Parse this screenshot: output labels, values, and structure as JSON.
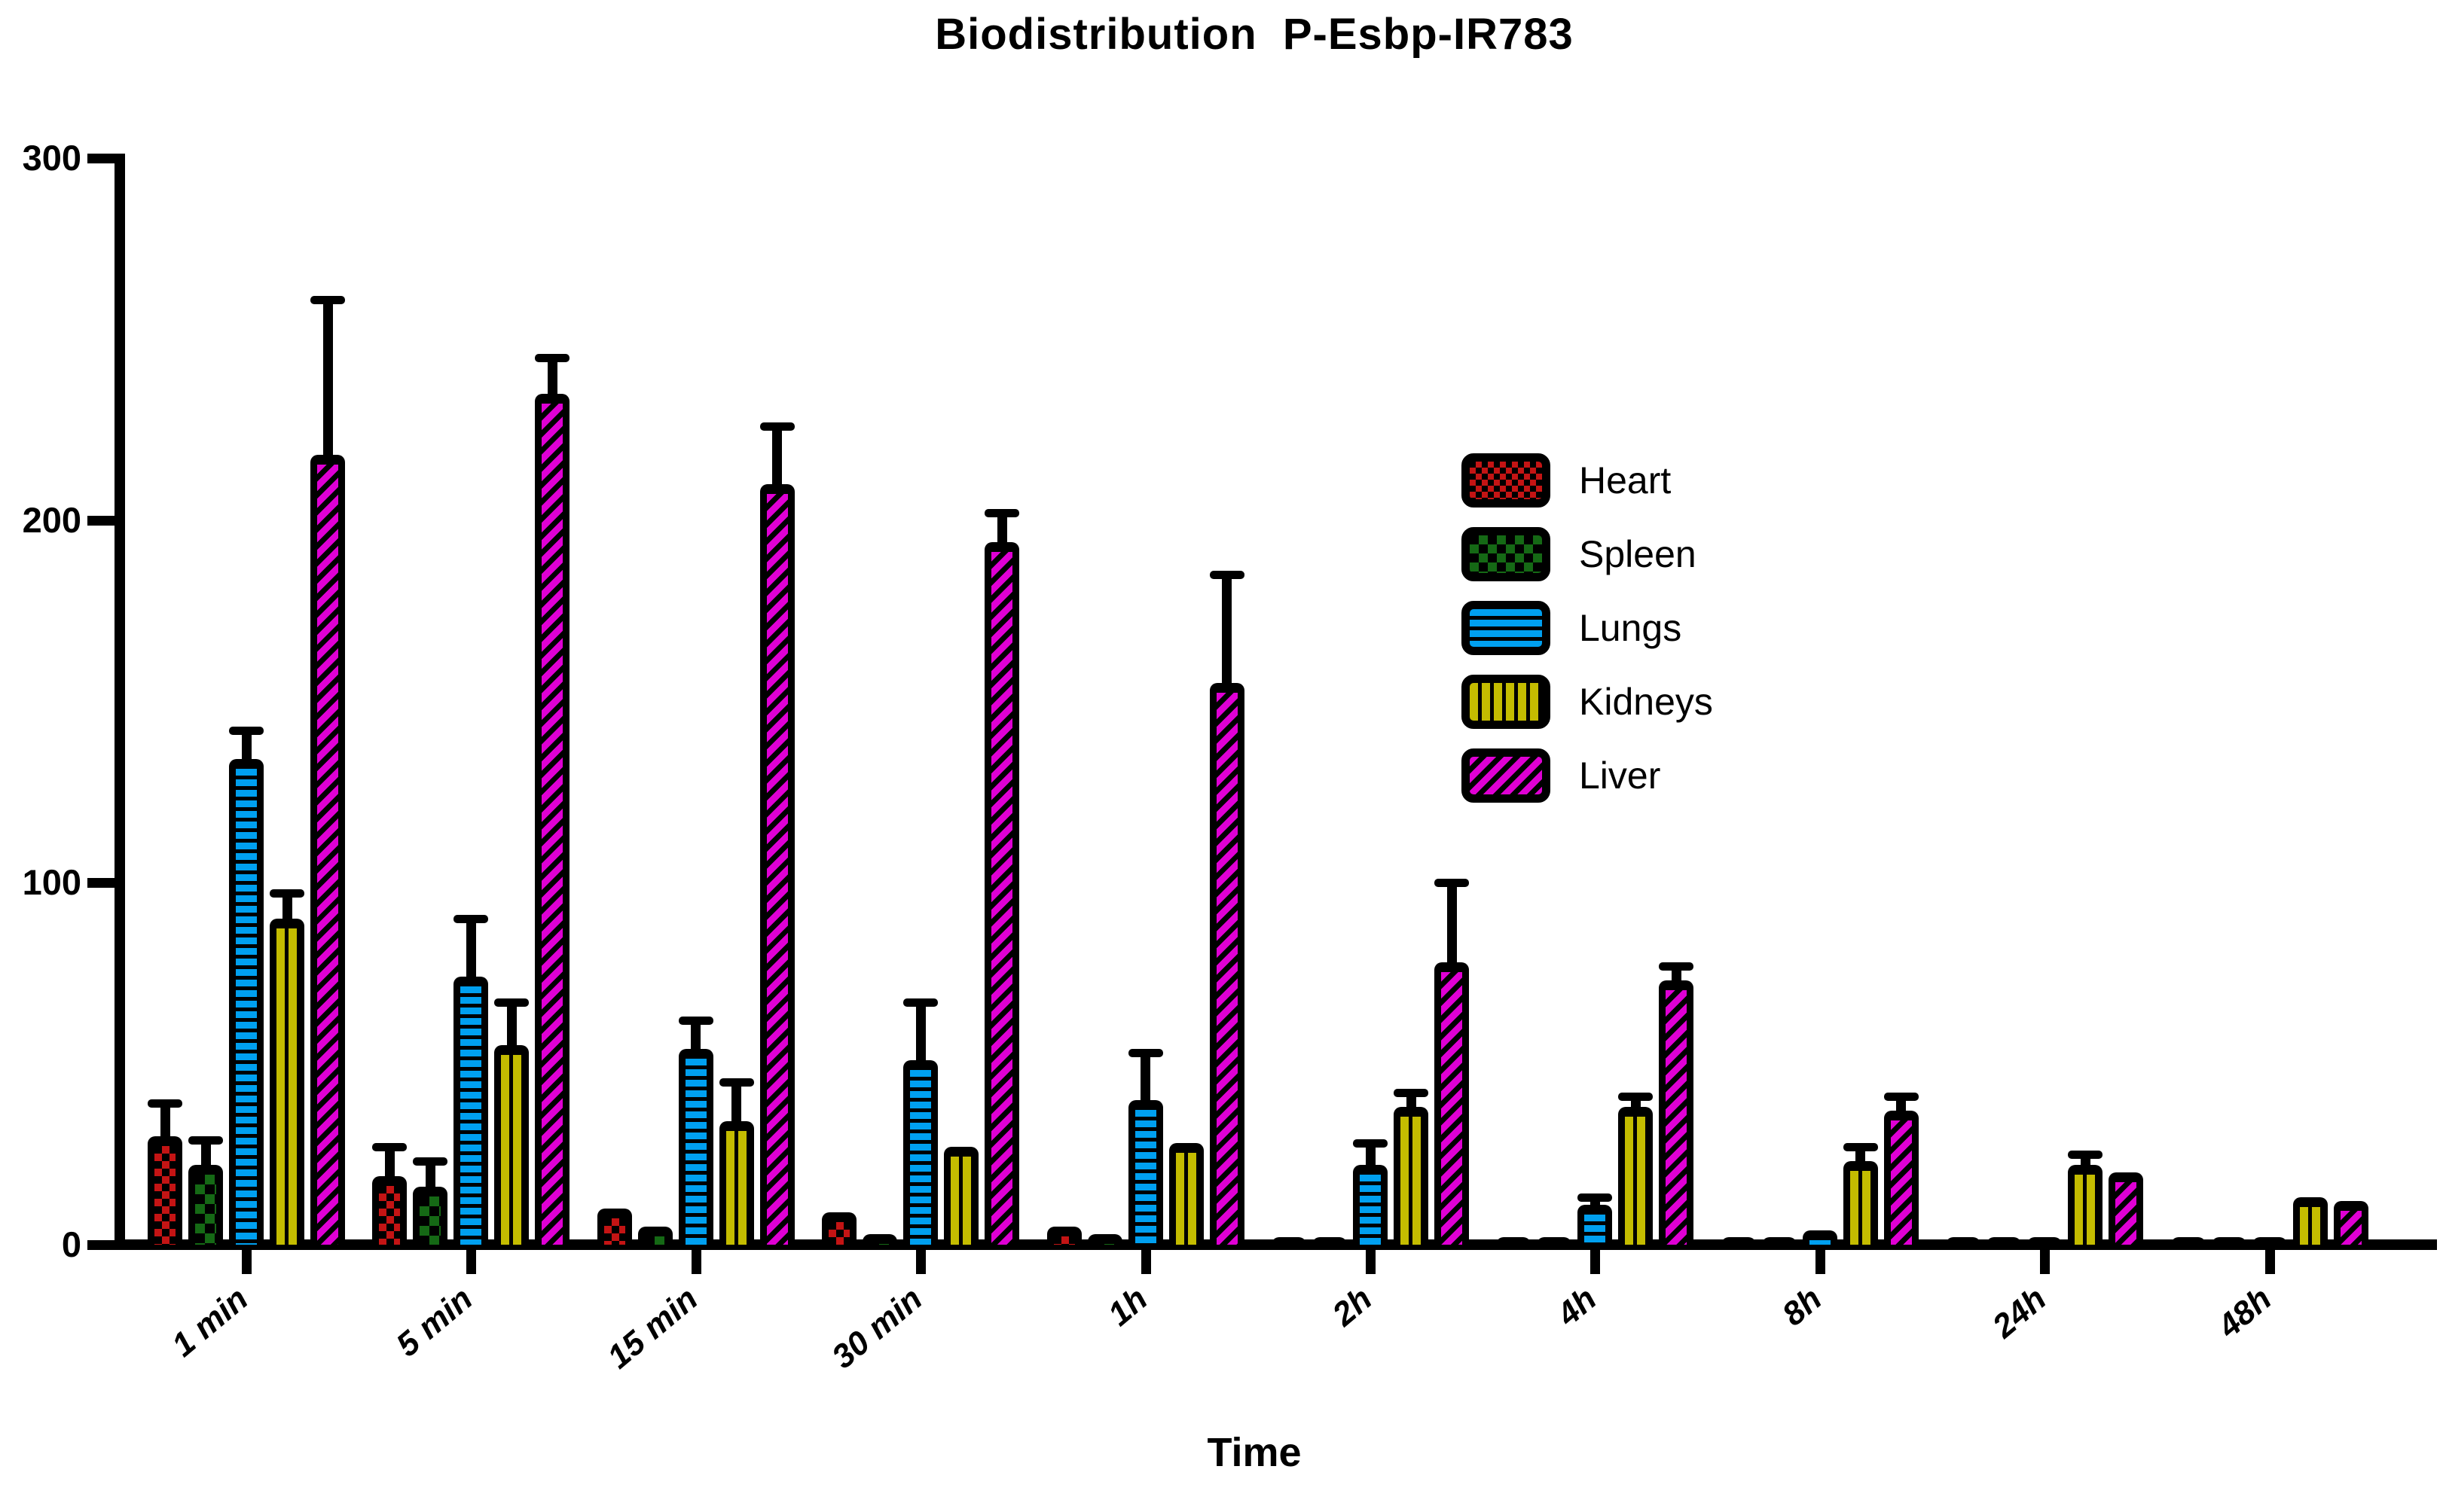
{
  "title": "Biodistribution  P-Esbp-IR783",
  "x_axis_title": "Time",
  "y_tick_labels": [
    "0",
    "100",
    "200",
    "300"
  ],
  "colors": {
    "heart": "#C41414",
    "spleen": "#156915",
    "lungs": "#00A0F0",
    "kidneys": "#C4BC00",
    "liver": "#DF00D4",
    "axis": "#000000",
    "background": "#FFFFFF"
  },
  "legend": {
    "position": "right-center",
    "entries": [
      "Heart",
      "Spleen",
      "Lungs",
      "Kidneys",
      "Liver"
    ]
  },
  "chart_data": {
    "type": "bar",
    "title": "Biodistribution  P-Esbp-IR783",
    "xlabel": "Time",
    "ylabel": "",
    "ylim": [
      0,
      300
    ],
    "y_ticks": [
      0,
      100,
      200,
      300
    ],
    "grid": false,
    "error_bars": true,
    "categories": [
      "1 min",
      "5 min",
      "15 min",
      "30 min",
      "1h",
      "2h",
      "4h",
      "8h",
      "24h",
      "48h"
    ],
    "series": [
      {
        "name": "Heart",
        "key": "heart",
        "color": "#C41414",
        "pattern": "red-black-checkerboard",
        "values": [
          30,
          19,
          10,
          9,
          5,
          2,
          2,
          1.5,
          1.5,
          1.5
        ],
        "errors": [
          39,
          27,
          null,
          null,
          null,
          null,
          null,
          null,
          null,
          null
        ]
      },
      {
        "name": "Spleen",
        "key": "spleen",
        "color": "#156915",
        "pattern": "green-black-checkerboard",
        "values": [
          22,
          16,
          5,
          3,
          3,
          2,
          2,
          1.5,
          1.5,
          1.5
        ],
        "errors": [
          29,
          23,
          null,
          null,
          null,
          null,
          null,
          null,
          null,
          null
        ]
      },
      {
        "name": "Lungs",
        "key": "lungs",
        "color": "#00A0F0",
        "pattern": "blue-horizontal-stripes",
        "values": [
          134,
          74,
          54,
          51,
          40,
          22,
          11,
          4,
          1.5,
          1
        ],
        "errors": [
          142,
          90,
          62,
          67,
          53,
          28,
          13,
          null,
          null,
          null
        ]
      },
      {
        "name": "Kidneys",
        "key": "kidneys",
        "color": "#C4BC00",
        "pattern": "yellow-vertical-stripes",
        "values": [
          90,
          55,
          34,
          27,
          28,
          38,
          38,
          23,
          22,
          13
        ],
        "errors": [
          97,
          67,
          45,
          null,
          null,
          42,
          41,
          27,
          25,
          null
        ]
      },
      {
        "name": "Liver",
        "key": "liver",
        "color": "#DF00D4",
        "pattern": "magenta-diagonal-stripes",
        "values": [
          218,
          235,
          210,
          194,
          155,
          78,
          73,
          37,
          20,
          12
        ],
        "errors": [
          261,
          245,
          226,
          202,
          185,
          100,
          77,
          41,
          null,
          null
        ]
      }
    ]
  }
}
